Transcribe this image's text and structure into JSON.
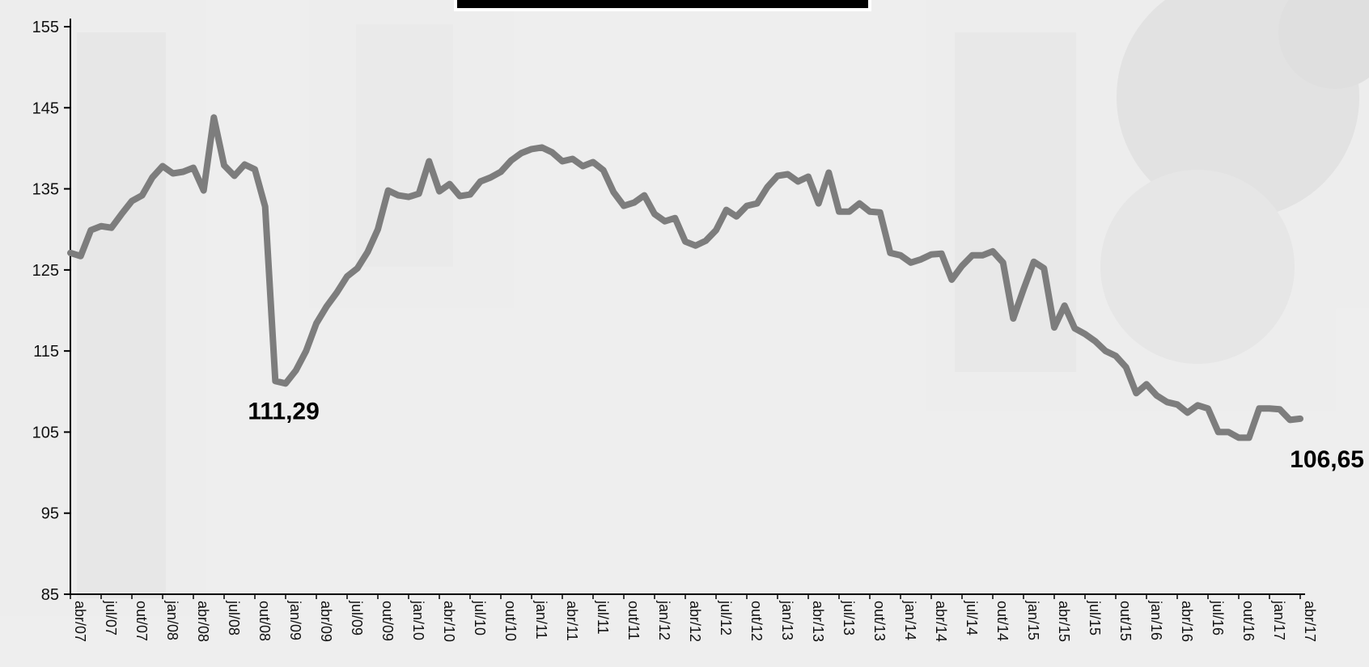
{
  "chart_data": {
    "type": "line",
    "title": "",
    "xlabel": "",
    "ylabel": "",
    "ylim": [
      85,
      155
    ],
    "yticks": [
      85,
      95,
      105,
      115,
      125,
      135,
      145,
      155
    ],
    "grid": false,
    "legend": "none",
    "colors": {
      "line": "#7d7d7d",
      "axis": "#000000",
      "title_box": "#000000",
      "title_box_border": "#ffffff"
    },
    "x": [
      "abr/07",
      "mai/07",
      "jun/07",
      "jul/07",
      "ago/07",
      "set/07",
      "out/07",
      "nov/07",
      "dez/07",
      "jan/08",
      "fev/08",
      "mar/08",
      "abr/08",
      "mai/08",
      "jun/08",
      "jul/08",
      "ago/08",
      "set/08",
      "out/08",
      "nov/08",
      "dez/08",
      "jan/09",
      "fev/09",
      "mar/09",
      "abr/09",
      "mai/09",
      "jun/09",
      "jul/09",
      "ago/09",
      "set/09",
      "out/09",
      "nov/09",
      "dez/09",
      "jan/10",
      "fev/10",
      "mar/10",
      "abr/10",
      "mai/10",
      "jun/10",
      "jul/10",
      "ago/10",
      "set/10",
      "out/10",
      "nov/10",
      "dez/10",
      "jan/11",
      "fev/11",
      "mar/11",
      "abr/11",
      "mai/11",
      "jun/11",
      "jul/11",
      "ago/11",
      "set/11",
      "out/11",
      "nov/11",
      "dez/11",
      "jan/12",
      "fev/12",
      "mar/12",
      "abr/12",
      "mai/12",
      "jun/12",
      "jul/12",
      "ago/12",
      "set/12",
      "out/12",
      "nov/12",
      "dez/12",
      "jan/13",
      "fev/13",
      "mar/13",
      "abr/13",
      "mai/13",
      "jun/13",
      "jul/13",
      "ago/13",
      "set/13",
      "out/13",
      "nov/13",
      "dez/13",
      "jan/14",
      "fev/14",
      "mar/14",
      "abr/14",
      "mai/14",
      "jun/14",
      "jul/14",
      "ago/14",
      "set/14",
      "out/14",
      "nov/14",
      "dez/14",
      "jan/15",
      "fev/15",
      "mar/15",
      "abr/15",
      "mai/15",
      "jun/15",
      "jul/15",
      "ago/15",
      "set/15",
      "out/15",
      "nov/15",
      "dez/15",
      "jan/16",
      "fev/16",
      "mar/16",
      "abr/16",
      "mai/16",
      "jun/16",
      "jul/16",
      "ago/16",
      "set/16",
      "out/16",
      "nov/16",
      "dez/16",
      "jan/17",
      "fev/17",
      "mar/17",
      "abr/17"
    ],
    "xtick_labels": [
      "abr/07",
      "jul/07",
      "out/07",
      "jan/08",
      "abr/08",
      "jul/08",
      "out/08",
      "jan/09",
      "abr/09",
      "jul/09",
      "out/09",
      "jan/10",
      "abr/10",
      "jul/10",
      "out/10",
      "jan/11",
      "abr/11",
      "jul/11",
      "out/11",
      "jan/12",
      "abr/12",
      "jul/12",
      "out/12",
      "jan/13",
      "abr/13",
      "jul/13",
      "out/13",
      "jan/14",
      "abr/14",
      "jul/14",
      "out/14",
      "jan/15",
      "abr/15",
      "jul/15",
      "out/15",
      "jan/16",
      "abr/16",
      "jul/16",
      "out/16",
      "jan/17",
      "abr/17"
    ],
    "series": [
      {
        "values": [
          127.1,
          126.7,
          129.9,
          130.4,
          130.2,
          131.9,
          133.5,
          134.2,
          136.4,
          137.8,
          136.9,
          137.1,
          137.6,
          134.8,
          143.8,
          137.9,
          136.6,
          138.0,
          137.4,
          132.8,
          111.29,
          111.0,
          112.6,
          115.0,
          118.4,
          120.5,
          122.2,
          124.2,
          125.2,
          127.2,
          130.0,
          134.8,
          134.2,
          134.0,
          134.4,
          138.4,
          134.7,
          135.6,
          134.1,
          134.3,
          135.9,
          136.4,
          137.1,
          138.5,
          139.4,
          139.9,
          140.1,
          139.5,
          138.4,
          138.7,
          137.8,
          138.3,
          137.3,
          134.6,
          132.9,
          133.3,
          134.2,
          131.9,
          131.0,
          131.4,
          128.5,
          128.0,
          128.6,
          129.9,
          132.4,
          131.6,
          132.9,
          133.2,
          135.2,
          136.6,
          136.8,
          135.9,
          136.5,
          133.2,
          137.0,
          132.2,
          132.2,
          133.2,
          132.2,
          132.1,
          127.1,
          126.8,
          125.9,
          126.3,
          126.9,
          127.0,
          123.8,
          125.5,
          126.8,
          126.8,
          127.3,
          125.9,
          119.0,
          122.6,
          126.0,
          125.2,
          117.9,
          120.6,
          117.8,
          117.1,
          116.2,
          115.0,
          114.4,
          113.0,
          109.8,
          110.9,
          109.5,
          108.7,
          108.4,
          107.4,
          108.3,
          107.9,
          105.0,
          105.0,
          104.3,
          104.3,
          107.9,
          107.9,
          107.8,
          106.5,
          106.65
        ]
      }
    ],
    "data_labels": [
      {
        "text": "111,29",
        "index": 20
      },
      {
        "text": "106,65",
        "index": 120
      }
    ]
  }
}
